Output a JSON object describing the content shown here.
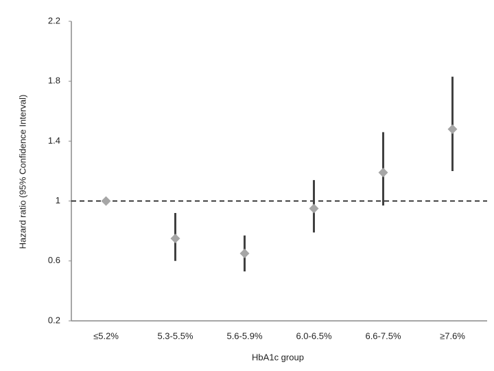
{
  "chart_data": {
    "type": "forest",
    "x_label": "HbA1c group",
    "y_label": "Hazard ratio (95% Confidence Interval)",
    "categories": [
      "≤5.2%",
      "5.3-5.5%",
      "5.6-5.9%",
      "6.0-6.5%",
      "6.6-7.5%",
      "≥7.6%"
    ],
    "series": [
      {
        "marker_color": "#a6a6a6",
        "bar_color": "#404040",
        "values": [
          1,
          0.75,
          0.65,
          0.95,
          1.19,
          1.48
        ],
        "lower": [
          null,
          0.6,
          0.53,
          0.79,
          0.97,
          1.2
        ],
        "upper": [
          null,
          0.92,
          0.77,
          1.14,
          1.46,
          1.83
        ]
      }
    ],
    "ylim": [
      0.2,
      2.2
    ],
    "yticks": [
      0.2,
      0.6,
      1,
      1.4,
      1.8,
      2.2
    ],
    "reference_line": 1
  }
}
